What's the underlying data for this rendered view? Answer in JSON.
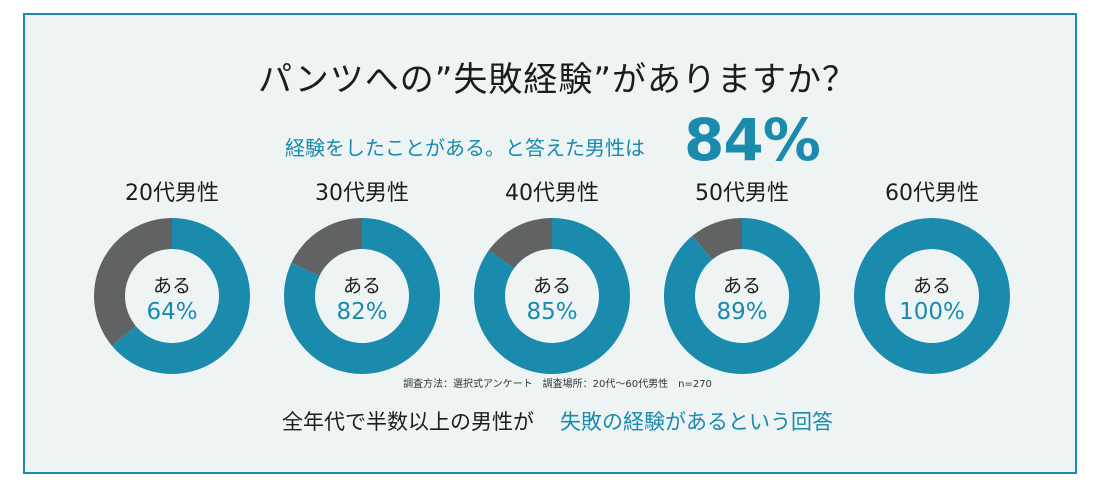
{
  "title": "パンツへの”失敗経験”がありますか？",
  "lead_text": "経験をしたことがある。と答えた男性は",
  "big_percent": "84%",
  "note": "調査方法：選択式アンケート　調査場所：20代〜60代男性　n=270",
  "summary": {
    "black": "全年代で半数以上の男性が",
    "blue": "失敗の経験があるという回答"
  },
  "colors": {
    "accent": "#1a8aad",
    "remainder": "#616264",
    "panel_bg": "#eef4f4"
  },
  "chart_data": [
    {
      "type": "pie",
      "title": "20代男性",
      "center_label": "ある",
      "value_label": "64%",
      "values": [
        64,
        36
      ]
    },
    {
      "type": "pie",
      "title": "30代男性",
      "center_label": "ある",
      "value_label": "82%",
      "values": [
        82,
        18
      ]
    },
    {
      "type": "pie",
      "title": "40代男性",
      "center_label": "ある",
      "value_label": "85%",
      "values": [
        85,
        15
      ]
    },
    {
      "type": "pie",
      "title": "50代男性",
      "center_label": "ある",
      "value_label": "89%",
      "values": [
        89,
        11
      ]
    },
    {
      "type": "pie",
      "title": "60代男性",
      "center_label": "ある",
      "value_label": "100%",
      "values": [
        100,
        0
      ]
    }
  ]
}
